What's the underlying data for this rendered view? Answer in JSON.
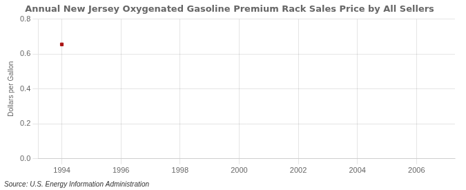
{
  "chart_data": {
    "type": "scatter",
    "title": "Annual New Jersey Oxygenated Gasoline Premium Rack Sales Price by All Sellers",
    "ylabel": "Dollars per Gallon",
    "annotations": [
      "Source: U.S. Energy Information Administration"
    ],
    "x": [
      1994
    ],
    "values": [
      0.655
    ],
    "color": "#aa1111",
    "marker": "square",
    "xlim": [
      1993.2,
      2007.3
    ],
    "xticks": [
      1994,
      1996,
      1998,
      2000,
      2002,
      2004,
      2006
    ],
    "ylim": [
      0.0,
      0.8
    ],
    "yticks": [
      {
        "value": 0.0,
        "label": "0.0"
      },
      0.2,
      0.4,
      0.6,
      0.8
    ],
    "grid": true
  }
}
